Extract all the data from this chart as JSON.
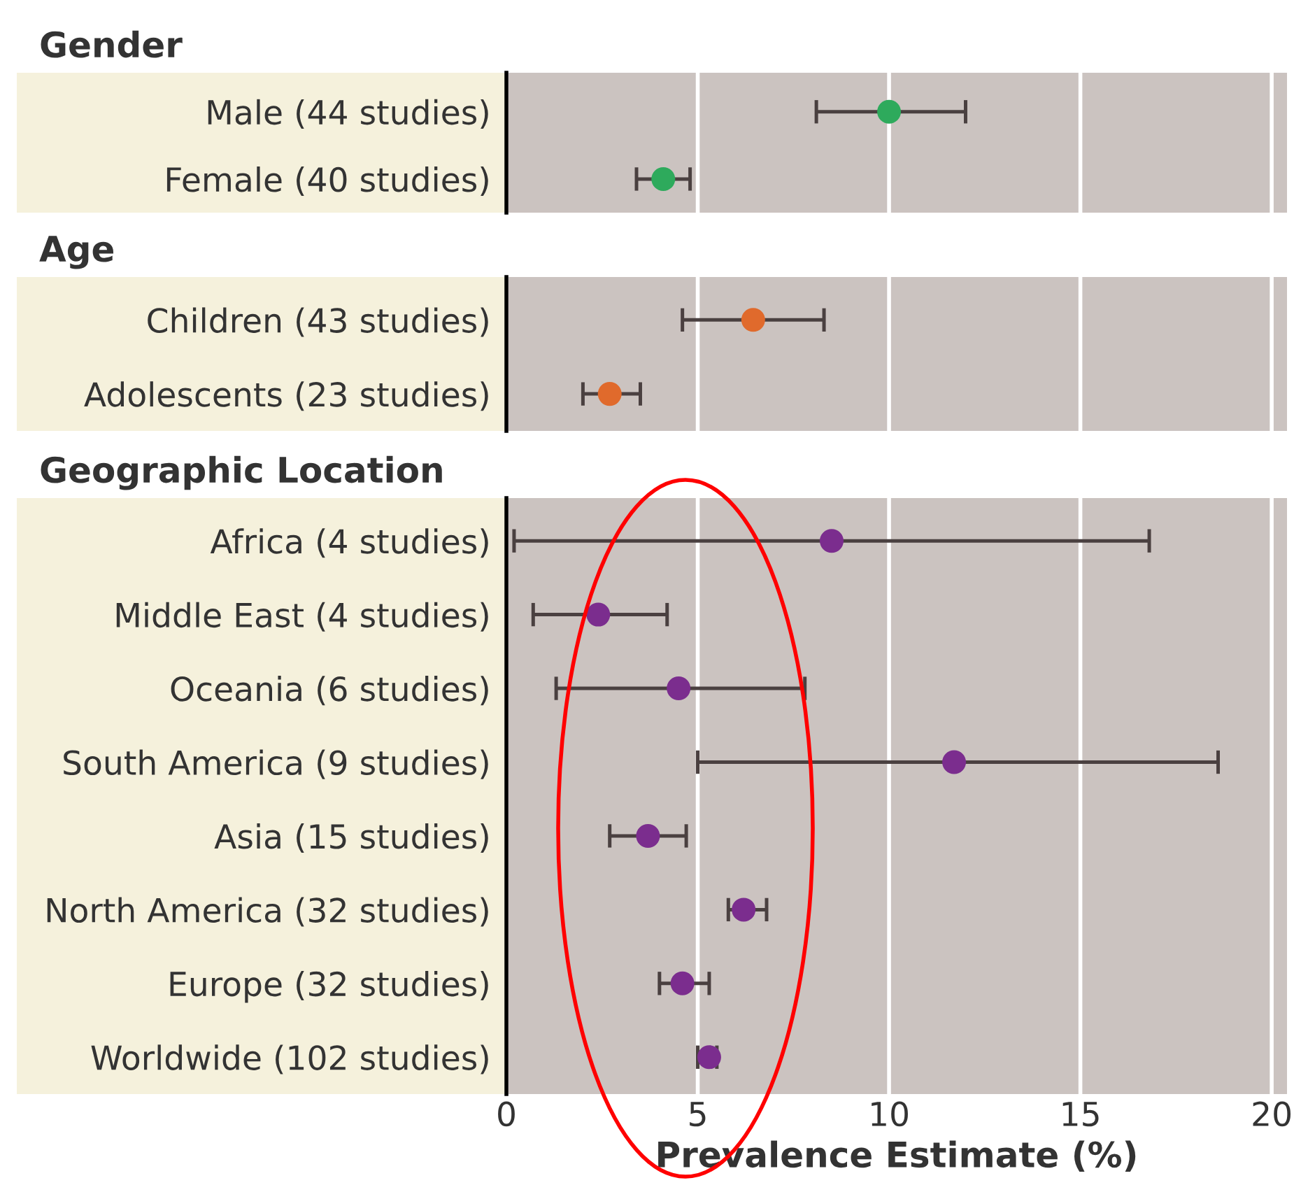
{
  "chart_data": [
    {
      "type": "scatter",
      "orientation": "horizontal",
      "title": "Gender",
      "categories": [
        "Male (44 studies)",
        "Female (40 studies)"
      ],
      "series": [
        {
          "color": "#2eaa5c",
          "values": [
            10.0,
            4.1
          ],
          "errors": [
            [
              8.1,
              12.0
            ],
            [
              3.4,
              4.8
            ]
          ]
        }
      ],
      "xlim": [
        0,
        20.4
      ],
      "xticks": [
        0,
        5,
        10,
        15,
        20
      ],
      "grid": "x",
      "tick_labels": "y",
      "marker": "circle"
    },
    {
      "type": "scatter",
      "orientation": "horizontal",
      "title": "Age",
      "categories": [
        "Children (43 studies)",
        "Adolescents (23 studies)"
      ],
      "series": [
        {
          "color": "#e06a2c",
          "values": [
            6.45,
            2.7
          ],
          "errors": [
            [
              4.6,
              8.3
            ],
            [
              2.0,
              3.5
            ]
          ]
        }
      ],
      "xlim": [
        0,
        20.4
      ],
      "xticks": [
        0,
        5,
        10,
        15,
        20
      ],
      "grid": "x",
      "tick_labels": "y",
      "marker": "circle"
    },
    {
      "type": "scatter",
      "orientation": "horizontal",
      "title": "Geographic Location",
      "xlabel": "Prevalence Estimate (%)",
      "categories": [
        "Africa (4 studies)",
        "Middle East (4 studies)",
        "Oceania (6 studies)",
        "South America (9 studies)",
        "Asia (15 studies)",
        "North America (32 studies)",
        "Europe (32 studies)",
        "Worldwide (102 studies)"
      ],
      "series": [
        {
          "color": "#7b2d8e",
          "values": [
            8.5,
            2.4,
            4.5,
            11.7,
            3.7,
            6.2,
            4.6,
            5.3
          ],
          "errors": [
            [
              0.2,
              16.8
            ],
            [
              0.7,
              4.2
            ],
            [
              1.3,
              7.8
            ],
            [
              5.0,
              18.6
            ],
            [
              2.7,
              4.7
            ],
            [
              5.8,
              6.8
            ],
            [
              4.0,
              5.3
            ],
            [
              5.0,
              5.5
            ]
          ]
        }
      ],
      "xlim": [
        0,
        20.4
      ],
      "xticks": [
        0,
        5,
        10,
        15,
        20
      ],
      "grid": "x",
      "marker": "circle"
    }
  ]
}
